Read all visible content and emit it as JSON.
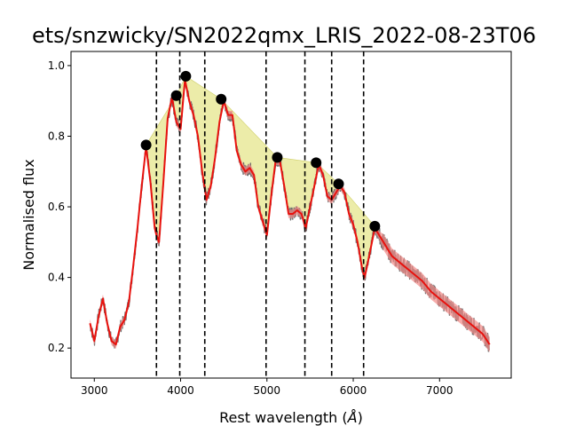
{
  "chart_data": {
    "type": "line",
    "title": "ets/snzwicky/SN2022qmx_LRIS_2022-08-23T06",
    "xlabel": "Rest wavelength (",
    "xlabel_unit": "Å",
    "xlabel_close": ")",
    "ylabel": "Normalised flux",
    "xlim": [
      2730,
      7830
    ],
    "ylim": [
      0.115,
      1.04
    ],
    "xticks": [
      3000,
      4000,
      5000,
      6000,
      7000
    ],
    "yticks": [
      0.2,
      0.4,
      0.6,
      0.8,
      1.0
    ],
    "xtick_labels": [
      "3000",
      "4000",
      "5000",
      "6000",
      "7000"
    ],
    "ytick_labels": [
      "0.2",
      "0.4",
      "0.6",
      "0.8",
      "1.0"
    ],
    "colors": {
      "raw": "#6e6e6e",
      "smoothed": "#e8120e",
      "band": "#f28a88",
      "continuum_fill": "#e6e68c",
      "markers": "#000000",
      "guides": "#000000"
    },
    "spectrum": {
      "x": [
        2950,
        3000,
        3050,
        3100,
        3150,
        3200,
        3250,
        3300,
        3350,
        3400,
        3450,
        3500,
        3550,
        3600,
        3650,
        3700,
        3720,
        3750,
        3800,
        3850,
        3900,
        3950,
        4000,
        4050,
        4100,
        4150,
        4200,
        4250,
        4300,
        4350,
        4400,
        4450,
        4500,
        4550,
        4600,
        4650,
        4700,
        4750,
        4800,
        4850,
        4900,
        4950,
        5000,
        5050,
        5100,
        5150,
        5200,
        5250,
        5300,
        5350,
        5400,
        5450,
        5500,
        5550,
        5600,
        5650,
        5700,
        5750,
        5800,
        5850,
        5900,
        5950,
        6000,
        6050,
        6100,
        6130,
        6150,
        6200,
        6250,
        6300,
        6350,
        6400,
        6450,
        6500,
        6550,
        6600,
        6700,
        6800,
        6900,
        7000,
        7100,
        7200,
        7300,
        7400,
        7500,
        7580
      ],
      "y": [
        0.27,
        0.22,
        0.29,
        0.34,
        0.27,
        0.22,
        0.21,
        0.26,
        0.28,
        0.33,
        0.43,
        0.54,
        0.66,
        0.77,
        0.67,
        0.54,
        0.52,
        0.5,
        0.67,
        0.85,
        0.91,
        0.84,
        0.82,
        0.96,
        0.9,
        0.86,
        0.8,
        0.7,
        0.62,
        0.66,
        0.74,
        0.84,
        0.9,
        0.86,
        0.86,
        0.76,
        0.72,
        0.7,
        0.71,
        0.69,
        0.6,
        0.56,
        0.52,
        0.63,
        0.73,
        0.73,
        0.66,
        0.58,
        0.58,
        0.59,
        0.58,
        0.54,
        0.6,
        0.66,
        0.72,
        0.69,
        0.63,
        0.62,
        0.64,
        0.66,
        0.64,
        0.58,
        0.55,
        0.5,
        0.43,
        0.4,
        0.42,
        0.48,
        0.54,
        0.52,
        0.5,
        0.48,
        0.46,
        0.45,
        0.44,
        0.43,
        0.41,
        0.39,
        0.36,
        0.34,
        0.32,
        0.3,
        0.28,
        0.26,
        0.24,
        0.21
      ]
    },
    "features": [
      {
        "x": 3600,
        "y": 0.775
      },
      {
        "x": 3950,
        "y": 0.915
      },
      {
        "x": 4060,
        "y": 0.97
      },
      {
        "x": 4470,
        "y": 0.905
      },
      {
        "x": 5120,
        "y": 0.74
      },
      {
        "x": 5570,
        "y": 0.725
      },
      {
        "x": 5830,
        "y": 0.665
      },
      {
        "x": 6250,
        "y": 0.545
      }
    ],
    "line_positions": [
      3720,
      3990,
      4280,
      4990,
      5440,
      5750,
      6120
    ],
    "grid": false,
    "legend": "none"
  }
}
